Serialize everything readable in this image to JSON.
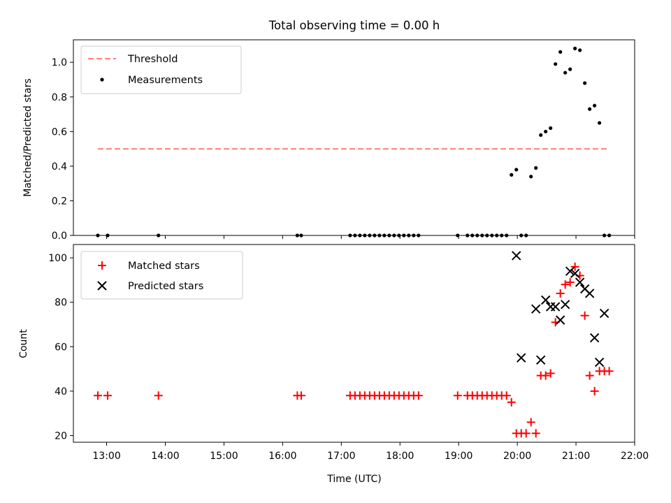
{
  "chart_data": [
    {
      "type": "scatter",
      "title": "Total observing time = 0.00 h",
      "xlabel": "",
      "ylabel": "Matched/Predicted stars",
      "ylim": [
        0,
        1.13
      ],
      "yticks": [
        "0.0",
        "0.2",
        "0.4",
        "0.6",
        "0.8",
        "1.0"
      ],
      "legend_position": "top-left",
      "grid": false,
      "series": [
        {
          "name": "Threshold",
          "kind": "dashed-line",
          "color": "#ff7f7f",
          "x": [
            "12:51",
            "21:34"
          ],
          "y": [
            0.5,
            0.5
          ]
        },
        {
          "name": "Measurements",
          "kind": "dots",
          "color": "#000000",
          "x": [
            "12:51",
            "13:01",
            "13:53",
            "16:15",
            "16:19",
            "17:09",
            "17:14",
            "17:19",
            "17:24",
            "17:29",
            "17:34",
            "17:39",
            "17:44",
            "17:49",
            "17:54",
            "17:59",
            "18:04",
            "18:09",
            "18:14",
            "18:19",
            "18:59",
            "19:09",
            "19:14",
            "19:19",
            "19:24",
            "19:29",
            "19:34",
            "19:39",
            "19:44",
            "19:49",
            "19:54",
            "19:59",
            "20:04",
            "20:09",
            "20:14",
            "20:19",
            "20:24",
            "20:29",
            "20:34",
            "20:39",
            "20:44",
            "20:49",
            "20:54",
            "20:59",
            "21:04",
            "21:09",
            "21:14",
            "21:19",
            "21:24",
            "21:29",
            "21:34"
          ],
          "y": [
            0,
            0,
            0,
            0,
            0,
            0,
            0,
            0,
            0,
            0,
            0,
            0,
            0,
            0,
            0,
            0,
            0,
            0,
            0,
            0,
            0,
            0,
            0,
            0,
            0,
            0,
            0,
            0,
            0,
            0,
            0.35,
            0.38,
            0,
            0,
            0.34,
            0.39,
            0.58,
            0.6,
            0.62,
            0.99,
            1.06,
            0.94,
            0.96,
            1.08,
            1.07,
            0.88,
            0.73,
            0.75,
            0.65,
            0,
            0
          ]
        }
      ]
    },
    {
      "type": "scatter",
      "title": "",
      "xlabel": "Time (UTC)",
      "ylabel": "Count",
      "ylim": [
        17,
        106
      ],
      "yticks": [
        "20",
        "40",
        "60",
        "80",
        "100"
      ],
      "xlim": [
        "12:26",
        "22:00"
      ],
      "xticks": [
        "13:00",
        "14:00",
        "15:00",
        "16:00",
        "17:00",
        "18:00",
        "19:00",
        "20:00",
        "21:00",
        "22:00"
      ],
      "legend_position": "top-left",
      "grid": false,
      "series": [
        {
          "name": "Matched stars",
          "marker": "plus",
          "color": "#ff0000",
          "x": [
            "12:51",
            "13:01",
            "13:53",
            "16:15",
            "16:19",
            "17:09",
            "17:14",
            "17:19",
            "17:24",
            "17:29",
            "17:34",
            "17:39",
            "17:44",
            "17:49",
            "17:54",
            "17:59",
            "18:04",
            "18:09",
            "18:14",
            "18:19",
            "18:59",
            "19:09",
            "19:14",
            "19:19",
            "19:24",
            "19:29",
            "19:34",
            "19:39",
            "19:44",
            "19:49",
            "19:54",
            "19:59",
            "20:04",
            "20:09",
            "20:14",
            "20:19",
            "20:24",
            "20:29",
            "20:34",
            "20:39",
            "20:44",
            "20:49",
            "20:54",
            "20:59",
            "21:04",
            "21:09",
            "21:14",
            "21:19",
            "21:24",
            "21:29",
            "21:34"
          ],
          "y": [
            38,
            38,
            38,
            38,
            38,
            38,
            38,
            38,
            38,
            38,
            38,
            38,
            38,
            38,
            38,
            38,
            38,
            38,
            38,
            38,
            38,
            38,
            38,
            38,
            38,
            38,
            38,
            38,
            38,
            38,
            35,
            21,
            21,
            21,
            26,
            21,
            47,
            47,
            48,
            71,
            84,
            88,
            89,
            96,
            92,
            74,
            47,
            40,
            49,
            49,
            49
          ]
        },
        {
          "name": "Predicted stars",
          "marker": "cross",
          "color": "#000000",
          "x": [
            "19:59",
            "20:04",
            "20:19",
            "20:24",
            "20:29",
            "20:34",
            "20:39",
            "20:44",
            "20:49",
            "20:54",
            "20:59",
            "21:04",
            "21:09",
            "21:14",
            "21:19",
            "21:24",
            "21:29"
          ],
          "y": [
            101,
            55,
            77,
            54,
            81,
            78,
            78,
            72,
            79,
            94,
            93,
            89,
            86,
            84,
            64,
            53,
            75
          ]
        }
      ]
    }
  ]
}
